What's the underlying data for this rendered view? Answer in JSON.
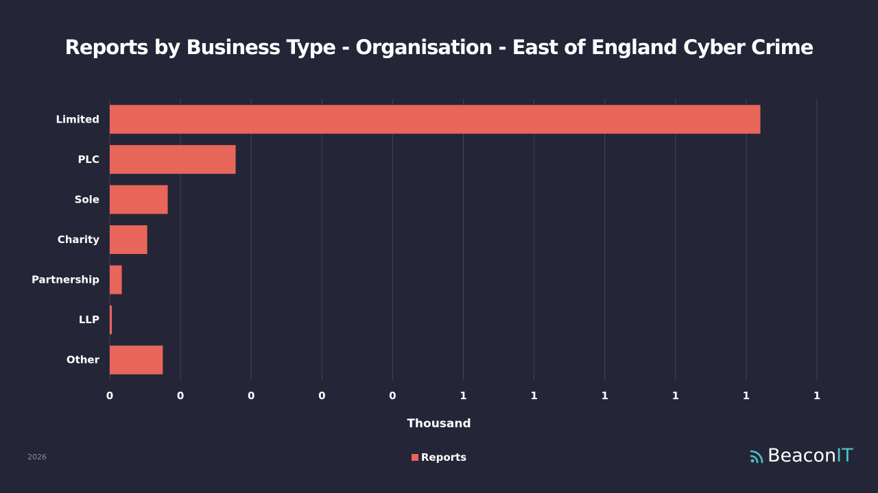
{
  "chart_data": {
    "type": "bar",
    "orientation": "horizontal",
    "title": "Reports by Business Type - Organisation - East of England Cyber Crime",
    "categories": [
      "Limited",
      "PLC",
      "Sole",
      "Charity",
      "Partnership",
      "LLP",
      "Other"
    ],
    "series": [
      {
        "name": "Reports",
        "color": "#e8665a",
        "values": [
          0.92,
          0.178,
          0.082,
          0.053,
          0.017,
          0.003,
          0.075
        ]
      }
    ],
    "xlabel": "Thousand",
    "ylabel": "",
    "xlim": [
      0,
      1.0
    ],
    "x_ticks": [
      "0",
      "0",
      "0",
      "0",
      "0",
      "1",
      "1",
      "1",
      "1",
      "1",
      "1"
    ],
    "grid": true,
    "legend_position": "bottom"
  },
  "footer": {
    "year": "2026",
    "brand_name_part1": "Beacon",
    "brand_name_part2": "IT",
    "brand_icon": "wifi-signal-icon"
  },
  "colors": {
    "background": "#252538",
    "bar": "#e8665a",
    "grid": "#44445e",
    "brand_accent": "#4cc3c8"
  }
}
